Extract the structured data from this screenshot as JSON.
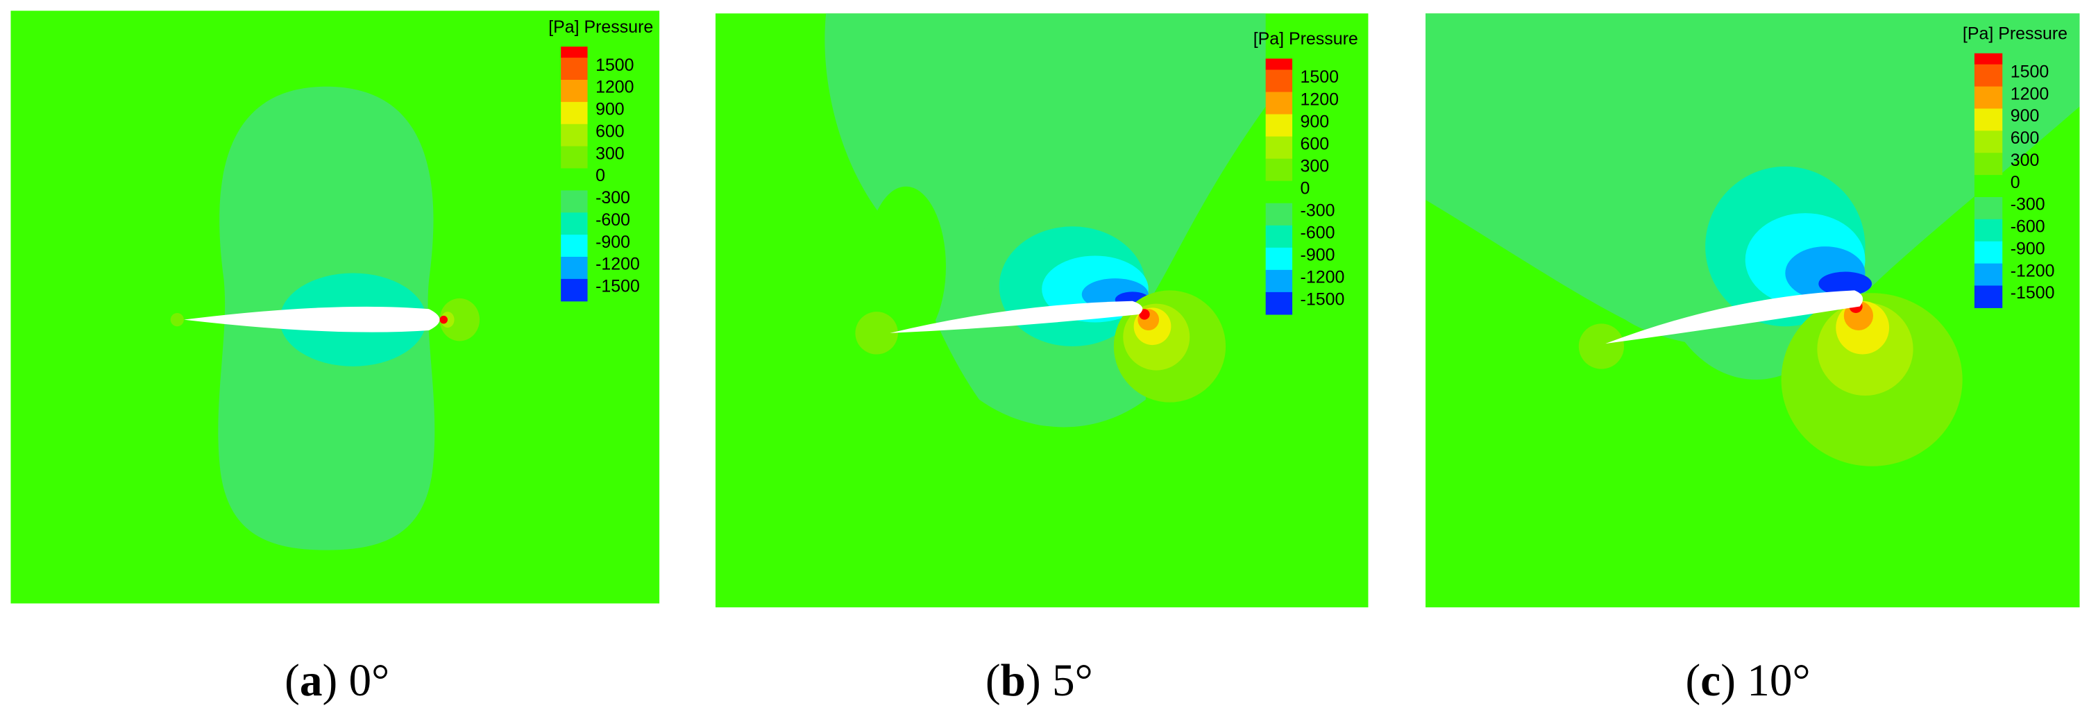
{
  "panels": [
    {
      "legend": {
        "title": "[Pa] Pressure",
        "ticks": [
          1500,
          1200,
          900,
          600,
          300,
          0,
          -300,
          -600,
          -900,
          -1200,
          -1500
        ]
      },
      "caption": {
        "prefix": "(",
        "letter": "a",
        "suffix": ") 0°"
      }
    },
    {
      "legend": {
        "title": "[Pa] Pressure",
        "ticks": [
          1500,
          1200,
          900,
          600,
          300,
          0,
          -300,
          -600,
          -900,
          -1200,
          -1500
        ]
      },
      "caption": {
        "prefix": "(",
        "letter": "b",
        "suffix": ") 5°"
      }
    },
    {
      "legend": {
        "title": "[Pa] Pressure",
        "ticks": [
          1500,
          1200,
          900,
          600,
          300,
          0,
          -300,
          -600,
          -900,
          -1200,
          -1500
        ]
      },
      "caption": {
        "prefix": "(",
        "letter": "c",
        "suffix": ") 10°"
      }
    }
  ],
  "colors": [
    "#ff0000",
    "#ff5a00",
    "#ffa000",
    "#f0f000",
    "#a8f000",
    "#78f000",
    "#3cff00",
    "#40e860",
    "#00f0b0",
    "#00ffff",
    "#00a8ff",
    "#0030ff"
  ]
}
